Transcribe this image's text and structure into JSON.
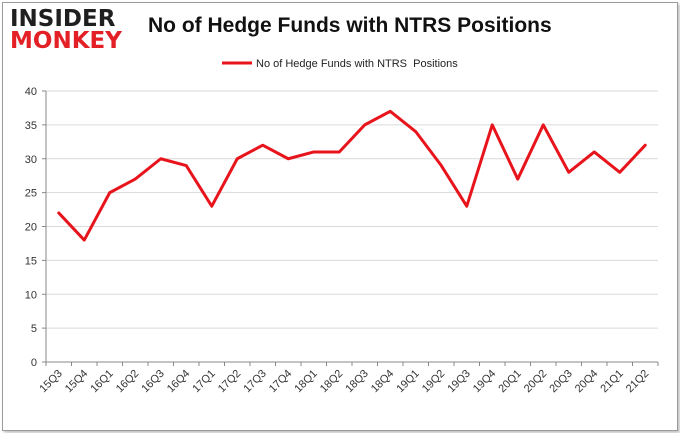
{
  "logo": {
    "line1": "INSIDER",
    "line2": "MONKEY"
  },
  "chart_data": {
    "type": "line",
    "title": "No of Hedge Funds with NTRS Positions",
    "xlabel": "",
    "ylabel": "",
    "ylim": [
      0,
      40
    ],
    "yticks": [
      0,
      5,
      10,
      15,
      20,
      25,
      30,
      35,
      40
    ],
    "grid": true,
    "legend_position": "top-center",
    "categories": [
      "15Q3",
      "15Q4",
      "16Q1",
      "16Q2",
      "16Q3",
      "16Q4",
      "17Q1",
      "17Q2",
      "17Q3",
      "17Q4",
      "18Q1",
      "18Q2",
      "18Q3",
      "18Q4",
      "19Q1",
      "19Q2",
      "19Q3",
      "19Q4",
      "20Q1",
      "20Q2",
      "20Q3",
      "20Q4",
      "21Q1",
      "21Q2"
    ],
    "series": [
      {
        "name": "No of Hedge Funds with NTRS  Positions",
        "color": "#e8141c",
        "values": [
          22,
          18,
          25,
          27,
          30,
          29,
          23,
          30,
          32,
          30,
          31,
          31,
          35,
          37,
          34,
          29,
          23,
          35,
          27,
          35,
          28,
          31,
          28,
          32
        ]
      }
    ]
  }
}
